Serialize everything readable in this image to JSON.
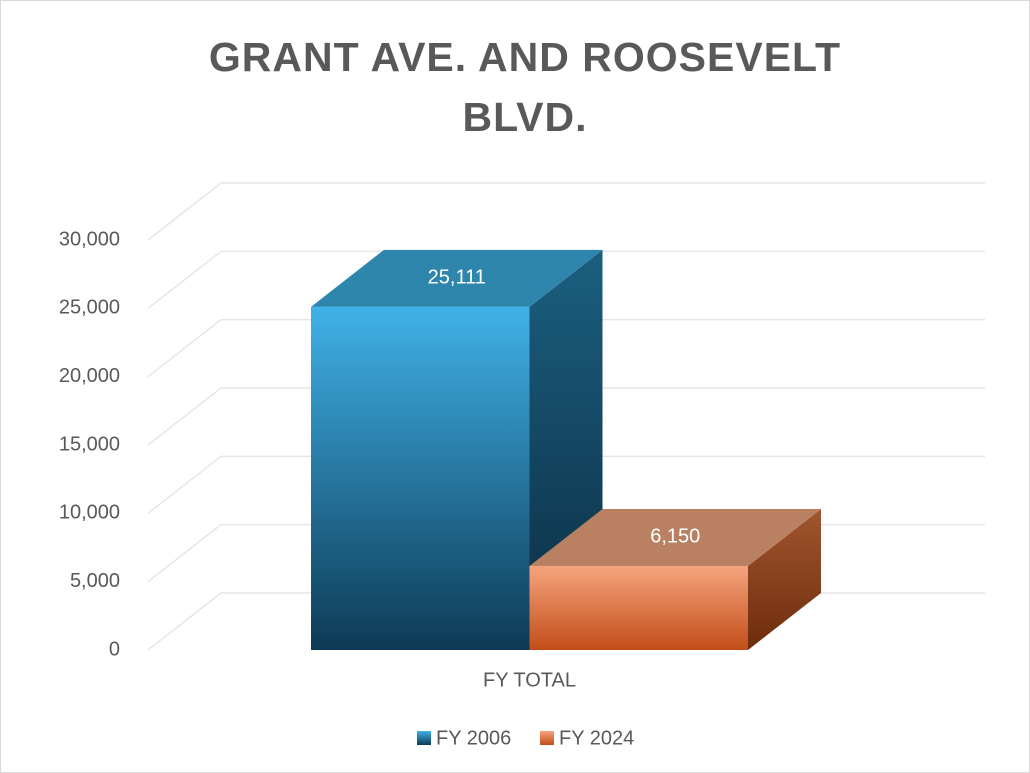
{
  "chart_data": {
    "type": "bar3d",
    "title": "GRANT AVE. AND ROOSEVELT BLVD.",
    "categories": [
      "FY TOTAL"
    ],
    "series": [
      {
        "name": "FY 2006",
        "color": "#1f6f97",
        "values": [
          25111
        ],
        "value_labels": [
          "25,111"
        ]
      },
      {
        "name": "FY 2024",
        "color": "#e8763c",
        "values": [
          6150
        ],
        "value_labels": [
          "6,150"
        ]
      }
    ],
    "ylim": [
      0,
      30000
    ],
    "yticks": [
      0,
      {
        "value": 5000,
        "label": "5,000"
      },
      {
        "value": 10000,
        "label": "10,000"
      },
      {
        "value": 15000,
        "label": "15,000"
      },
      {
        "value": 20000,
        "label": "20,000"
      },
      {
        "value": 25000,
        "label": "25,000"
      },
      {
        "value": 30000,
        "label": "30,000"
      }
    ],
    "grid": true,
    "legend": "bottom"
  }
}
